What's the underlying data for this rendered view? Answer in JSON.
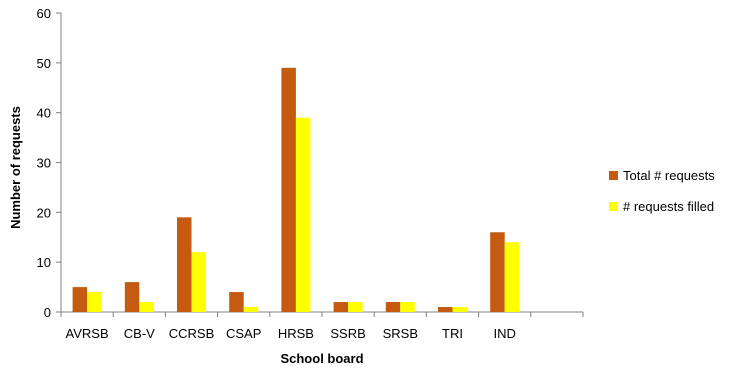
{
  "chart_data": {
    "type": "bar",
    "title": "",
    "xlabel": "School board",
    "ylabel": "Number of requests",
    "categories": [
      "AVRSB",
      "CB-V",
      "CCRSB",
      "CSAP",
      "HRSB",
      "SSRB",
      "SRSB",
      "TRI",
      "IND",
      ""
    ],
    "series": [
      {
        "name": "Total # requests",
        "color": "#c55a11",
        "values": [
          5,
          6,
          19,
          4,
          49,
          2,
          2,
          1,
          16,
          null
        ]
      },
      {
        "name": "# requests filled",
        "color": "#ffff00",
        "values": [
          4,
          2,
          12,
          1,
          39,
          2,
          2,
          1,
          14,
          null
        ]
      }
    ],
    "ylim": [
      0,
      60
    ],
    "yticks": [
      0,
      10,
      20,
      30,
      40,
      50,
      60
    ],
    "grid": false,
    "legend": "right"
  }
}
